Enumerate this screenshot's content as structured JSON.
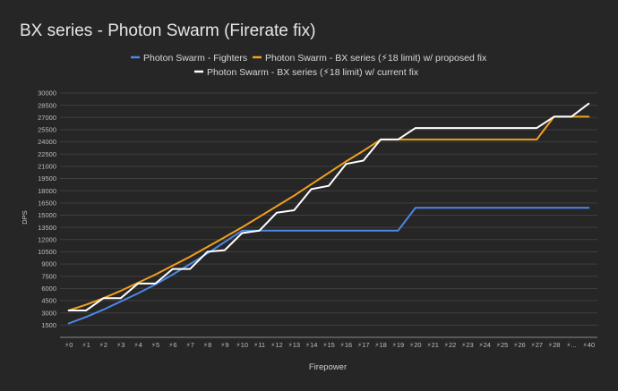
{
  "chart_data": {
    "type": "line",
    "title": "BX series - Photon Swarm (Firerate fix)",
    "xlabel": "Firepower",
    "ylabel": "DPS",
    "categories": [
      "⚡0",
      "⚡1",
      "⚡2",
      "⚡3",
      "⚡4",
      "⚡5",
      "⚡6",
      "⚡7",
      "⚡8",
      "⚡9",
      "⚡10",
      "⚡11",
      "⚡12",
      "⚡13",
      "⚡14",
      "⚡15",
      "⚡16",
      "⚡17",
      "⚡18",
      "⚡19",
      "⚡20",
      "⚡21",
      "⚡22",
      "⚡23",
      "⚡24",
      "⚡25",
      "⚡26",
      "⚡27",
      "⚡28",
      "⚡...",
      "⚡40"
    ],
    "yticks": [
      "30000",
      "28500",
      "27000",
      "25500",
      "24000",
      "22500",
      "21000",
      "19500",
      "18000",
      "16500",
      "15000",
      "13500",
      "12000",
      "10500",
      "9000",
      "7500",
      "6000",
      "4500",
      "3000",
      "1500"
    ],
    "ylim": [
      0,
      30000
    ],
    "grid": true,
    "legend_position": "top",
    "series": [
      {
        "name": "Photon Swarm - Fighters",
        "color": "#4d87e6",
        "values": [
          1700,
          2500,
          3400,
          4400,
          5400,
          6500,
          7700,
          9000,
          10300,
          11700,
          13100,
          13100,
          13100,
          13100,
          13100,
          13100,
          13100,
          13100,
          13100,
          13100,
          15900,
          15900,
          15900,
          15900,
          15900,
          15900,
          15900,
          15900,
          15900,
          15900,
          15900
        ]
      },
      {
        "name": "Photon Swarm - BX series (⚡18 limit) w/ proposed fix",
        "color": "#f0a020",
        "values": [
          3300,
          4000,
          4800,
          5700,
          6700,
          7700,
          8800,
          9900,
          11100,
          12300,
          13500,
          14800,
          16100,
          17400,
          18800,
          20200,
          21600,
          22900,
          24300,
          24300,
          24300,
          24300,
          24300,
          24300,
          24300,
          24300,
          24300,
          24300,
          27100,
          27100,
          27100
        ]
      },
      {
        "name": "Photon Swarm - BX series (⚡18 limit) w/ current fix",
        "color": "#ffffff",
        "values": [
          3300,
          3300,
          4800,
          4800,
          6600,
          6600,
          8400,
          8400,
          10500,
          10700,
          12800,
          13100,
          15300,
          15600,
          18200,
          18600,
          21300,
          21700,
          24300,
          24300,
          25700,
          25700,
          25700,
          25700,
          25700,
          25700,
          25700,
          25700,
          27100,
          27100,
          28700
        ]
      }
    ]
  }
}
